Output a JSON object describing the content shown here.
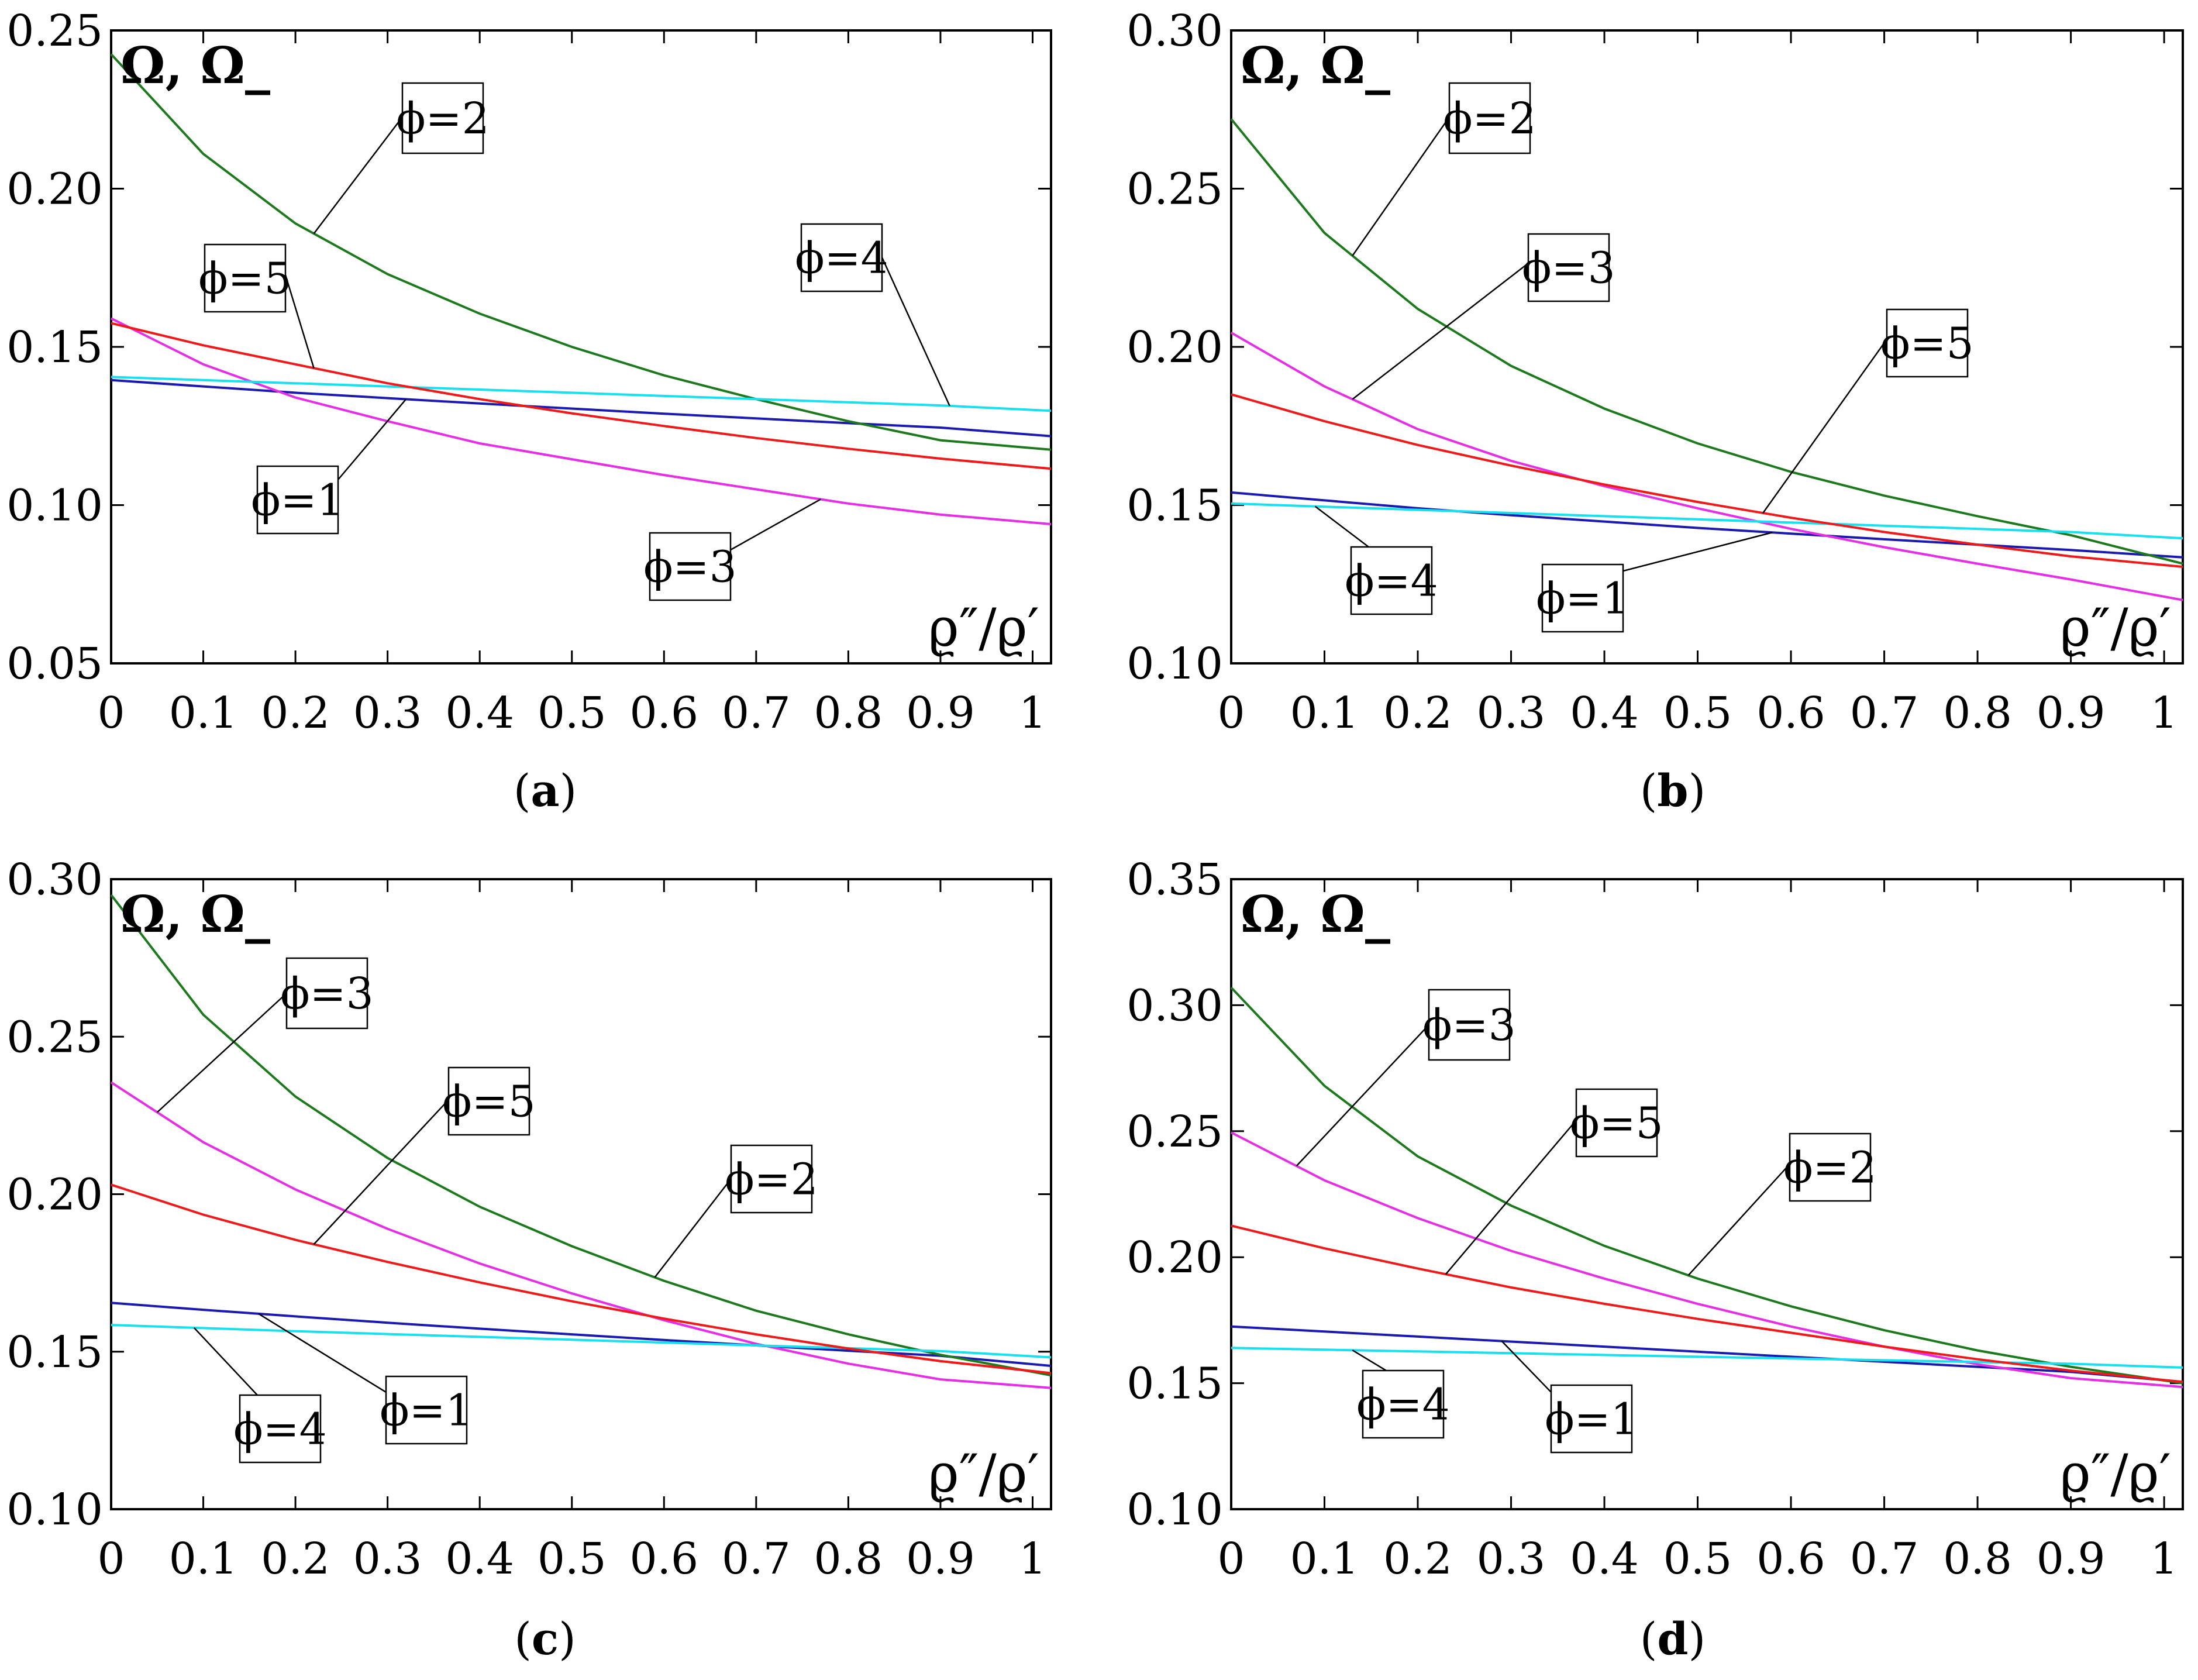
{
  "figure": {
    "colors": {
      "phi1": "#1a1ab0",
      "phi2": "#1c7a1c",
      "phi3": "#e62ee6",
      "phi4": "#19e0ee",
      "phi5": "#ee1a1a"
    }
  },
  "chart_data": [
    {
      "type": "line",
      "caption_letter": "a",
      "ylabel": "Ω, Ω_",
      "xlabel": "ϱ″/ϱ′",
      "xlim": [
        0,
        1.02
      ],
      "ylim": [
        0.05,
        0.25
      ],
      "yticks": [
        "0.05",
        "0.10",
        "0.15",
        "0.20",
        "0.25"
      ],
      "xticks": [
        "0",
        "0.1",
        "0.2",
        "0.3",
        "0.4",
        "0.5",
        "0.6",
        "0.7",
        "0.8",
        "0.9",
        "1"
      ],
      "x": [
        0,
        0.1,
        0.2,
        0.3,
        0.4,
        0.5,
        0.6,
        0.7,
        0.8,
        0.9,
        1.02
      ],
      "series": [
        {
          "key": "phi1",
          "name": "ϕ=1",
          "values": [
            0.1395,
            0.1375,
            0.1355,
            0.1338,
            0.1321,
            0.1305,
            0.1289,
            0.1274,
            0.1259,
            0.1245,
            0.1218
          ]
        },
        {
          "key": "phi2",
          "name": "ϕ=2",
          "values": [
            0.2425,
            0.211,
            0.189,
            0.173,
            0.1605,
            0.15,
            0.141,
            0.1335,
            0.1265,
            0.1205,
            0.1175
          ]
        },
        {
          "key": "phi3",
          "name": "ϕ=3",
          "values": [
            0.159,
            0.1445,
            0.134,
            0.1265,
            0.1195,
            0.1145,
            0.1095,
            0.105,
            0.1005,
            0.097,
            0.094
          ]
        },
        {
          "key": "phi4",
          "name": "ϕ=4",
          "values": [
            0.1405,
            0.1395,
            0.1385,
            0.1375,
            0.1365,
            0.1355,
            0.1345,
            0.1335,
            0.1325,
            0.1315,
            0.1298
          ]
        },
        {
          "key": "phi5",
          "name": "ϕ=5",
          "values": [
            0.1575,
            0.1505,
            0.1445,
            0.1385,
            0.1335,
            0.129,
            0.125,
            0.1212,
            0.1178,
            0.1147,
            0.1115
          ]
        }
      ],
      "annotations": [
        "ϕ=2",
        "ϕ=5",
        "ϕ=4",
        "ϕ=1",
        "ϕ=3"
      ]
    },
    {
      "type": "line",
      "caption_letter": "b",
      "ylabel": "Ω, Ω_",
      "xlabel": "ϱ″/ϱ′",
      "xlim": [
        0,
        1.02
      ],
      "ylim": [
        0.1,
        0.3
      ],
      "yticks": [
        "0.10",
        "0.15",
        "0.20",
        "0.25",
        "0.30"
      ],
      "xticks": [
        "0",
        "0.1",
        "0.2",
        "0.3",
        "0.4",
        "0.5",
        "0.6",
        "0.7",
        "0.8",
        "0.9",
        "1"
      ],
      "x": [
        0,
        0.1,
        0.2,
        0.3,
        0.4,
        0.5,
        0.6,
        0.7,
        0.8,
        0.9,
        1.02
      ],
      "series": [
        {
          "key": "phi1",
          "name": "ϕ=1",
          "values": [
            0.154,
            0.1515,
            0.149,
            0.1468,
            0.1448,
            0.1428,
            0.141,
            0.1392,
            0.1375,
            0.1358,
            0.1335
          ]
        },
        {
          "key": "phi2",
          "name": "ϕ=2",
          "values": [
            0.272,
            0.236,
            0.212,
            0.194,
            0.1805,
            0.1695,
            0.1605,
            0.153,
            0.1465,
            0.1405,
            0.1315
          ]
        },
        {
          "key": "phi3",
          "name": "ϕ=3",
          "values": [
            0.2045,
            0.1875,
            0.174,
            0.164,
            0.156,
            0.149,
            0.1425,
            0.1367,
            0.1315,
            0.1265,
            0.12
          ]
        },
        {
          "key": "phi4",
          "name": "ϕ=4",
          "values": [
            0.1505,
            0.1495,
            0.1485,
            0.1475,
            0.1465,
            0.1455,
            0.1445,
            0.1435,
            0.1425,
            0.1415,
            0.1395
          ]
        },
        {
          "key": "phi5",
          "name": "ϕ=5",
          "values": [
            0.185,
            0.1765,
            0.169,
            0.1625,
            0.1565,
            0.151,
            0.146,
            0.1415,
            0.1375,
            0.1338,
            0.1305
          ]
        }
      ],
      "annotations": [
        "ϕ=2",
        "ϕ=3",
        "ϕ=5",
        "ϕ=4",
        "ϕ=1"
      ]
    },
    {
      "type": "line",
      "caption_letter": "c",
      "ylabel": "Ω, Ω_",
      "xlabel": "ϱ″/ϱ′",
      "xlim": [
        0,
        1.02
      ],
      "ylim": [
        0.1,
        0.3
      ],
      "yticks": [
        "0.10",
        "0.15",
        "0.20",
        "0.25",
        "0.30"
      ],
      "xticks": [
        "0",
        "0.1",
        "0.2",
        "0.3",
        "0.4",
        "0.5",
        "0.6",
        "0.7",
        "0.8",
        "0.9",
        "1"
      ],
      "x": [
        0,
        0.1,
        0.2,
        0.3,
        0.4,
        0.5,
        0.6,
        0.7,
        0.8,
        0.9,
        1.02
      ],
      "series": [
        {
          "key": "phi1",
          "name": "ϕ=1",
          "values": [
            0.1655,
            0.1633,
            0.1612,
            0.1592,
            0.1573,
            0.1555,
            0.1537,
            0.152,
            0.1503,
            0.1487,
            0.1455
          ]
        },
        {
          "key": "phi2",
          "name": "ϕ=2",
          "values": [
            0.295,
            0.257,
            0.231,
            0.2115,
            0.196,
            0.1835,
            0.1725,
            0.163,
            0.1555,
            0.149,
            0.1425
          ]
        },
        {
          "key": "phi3",
          "name": "ϕ=3",
          "values": [
            0.2355,
            0.2165,
            0.2015,
            0.189,
            0.178,
            0.1685,
            0.16,
            0.1525,
            0.1462,
            0.1412,
            0.1385
          ]
        },
        {
          "key": "phi4",
          "name": "ϕ=4",
          "values": [
            0.1585,
            0.1575,
            0.1565,
            0.1556,
            0.1547,
            0.1538,
            0.1529,
            0.152,
            0.1511,
            0.1502,
            0.1482
          ]
        },
        {
          "key": "phi5",
          "name": "ϕ=5",
          "values": [
            0.203,
            0.1935,
            0.1855,
            0.1785,
            0.172,
            0.166,
            0.1605,
            0.1555,
            0.151,
            0.147,
            0.1432
          ]
        }
      ],
      "annotations": [
        "ϕ=3",
        "ϕ=5",
        "ϕ=2",
        "ϕ=4",
        "ϕ=1"
      ]
    },
    {
      "type": "line",
      "caption_letter": "d",
      "ylabel": "Ω, Ω_",
      "xlabel": "ϱ″/ϱ′",
      "xlim": [
        0,
        1.02
      ],
      "ylim": [
        0.1,
        0.35
      ],
      "yticks": [
        "0.10",
        "0.15",
        "0.20",
        "0.25",
        "0.30",
        "0.35"
      ],
      "xticks": [
        "0",
        "0.1",
        "0.2",
        "0.3",
        "0.4",
        "0.5",
        "0.6",
        "0.7",
        "0.8",
        "0.9",
        "1"
      ],
      "x": [
        0,
        0.1,
        0.2,
        0.3,
        0.4,
        0.5,
        0.6,
        0.7,
        0.8,
        0.9,
        1.02
      ],
      "series": [
        {
          "key": "phi1",
          "name": "ϕ=1",
          "values": [
            0.1725,
            0.1705,
            0.1685,
            0.1665,
            0.1645,
            0.1625,
            0.1605,
            0.1585,
            0.1565,
            0.1545,
            0.1505
          ]
        },
        {
          "key": "phi2",
          "name": "ϕ=2",
          "values": [
            0.307,
            0.268,
            0.24,
            0.2205,
            0.2045,
            0.1915,
            0.1805,
            0.171,
            0.163,
            0.1565,
            0.15
          ]
        },
        {
          "key": "phi3",
          "name": "ϕ=3",
          "values": [
            0.2495,
            0.2305,
            0.2155,
            0.2025,
            0.1915,
            0.1815,
            0.1725,
            0.1645,
            0.1575,
            0.152,
            0.1485
          ]
        },
        {
          "key": "phi4",
          "name": "ϕ=4",
          "values": [
            0.164,
            0.1633,
            0.1626,
            0.1619,
            0.1612,
            0.1605,
            0.1598,
            0.1591,
            0.1584,
            0.1577,
            0.1562
          ]
        },
        {
          "key": "phi5",
          "name": "ϕ=5",
          "values": [
            0.2125,
            0.2035,
            0.1955,
            0.188,
            0.1815,
            0.1755,
            0.17,
            0.1645,
            0.1595,
            0.155,
            0.1505
          ]
        }
      ],
      "annotations": [
        "ϕ=3",
        "ϕ=5",
        "ϕ=2",
        "ϕ=4",
        "ϕ=1"
      ]
    }
  ]
}
